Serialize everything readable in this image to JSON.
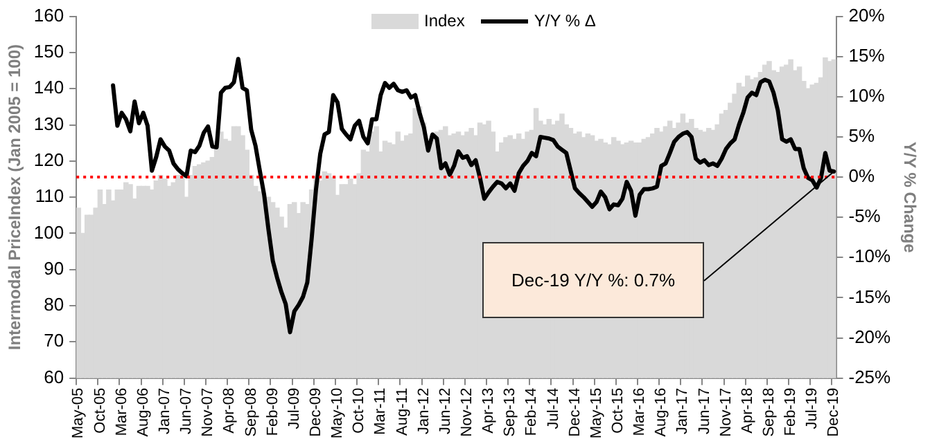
{
  "chart_data": {
    "type": "bar",
    "ylabel": "Intermodal PriceIndex (Jan 2005 = 100)",
    "y2label": "Y/Y % Change",
    "categories": [
      "May-05",
      null,
      null,
      null,
      null,
      "Oct-05",
      null,
      null,
      null,
      null,
      "Mar-06",
      null,
      null,
      null,
      null,
      "Aug-06",
      null,
      null,
      null,
      null,
      "Jan-07",
      null,
      null,
      null,
      null,
      "Jun-07",
      null,
      null,
      null,
      null,
      "Nov-07",
      null,
      null,
      null,
      null,
      "Apr-08",
      null,
      null,
      null,
      null,
      "Sep-08",
      null,
      null,
      null,
      null,
      "Feb-09",
      null,
      null,
      null,
      null,
      "Jul-09",
      null,
      null,
      null,
      null,
      "Dec-09",
      null,
      null,
      null,
      null,
      "May-10",
      null,
      null,
      null,
      null,
      "Oct-10",
      null,
      null,
      null,
      null,
      "Mar-11",
      null,
      null,
      null,
      null,
      "Aug-11",
      null,
      null,
      null,
      null,
      "Jan-12",
      null,
      null,
      null,
      null,
      "Jun-12",
      null,
      null,
      null,
      null,
      "Nov-12",
      null,
      null,
      null,
      null,
      "Apr-13",
      null,
      null,
      null,
      null,
      "Sep-13",
      null,
      null,
      null,
      null,
      "Feb-14",
      null,
      null,
      null,
      null,
      "Jul-14",
      null,
      null,
      null,
      null,
      "Dec-14",
      null,
      null,
      null,
      null,
      "May-15",
      null,
      null,
      null,
      null,
      "Oct-15",
      null,
      null,
      null,
      null,
      "Mar-16",
      null,
      null,
      null,
      null,
      "Aug-16",
      null,
      null,
      null,
      null,
      "Jan-17",
      null,
      null,
      null,
      null,
      "Jun-17",
      null,
      null,
      null,
      null,
      "Nov-17",
      null,
      null,
      null,
      null,
      "Apr-18",
      null,
      null,
      null,
      null,
      "Sep-18",
      null,
      null,
      null,
      null,
      "Feb-19",
      null,
      null,
      null,
      null,
      "Jul-19",
      null,
      null,
      null,
      null,
      "Dec-19"
    ],
    "series": [
      {
        "name": "Index",
        "type": "bar",
        "color": "#d9d9d9",
        "values": [
          107,
          100,
          105,
          105,
          107,
          112,
          108,
          112,
          109,
          112,
          112,
          114,
          113.5,
          109.5,
          113,
          113,
          113,
          112,
          114.5,
          116,
          115,
          113,
          114,
          116,
          115.5,
          110,
          116,
          118.5,
          119,
          119.5,
          120,
          121,
          125.5,
          128,
          126,
          125.5,
          129.5,
          129.5,
          127,
          123,
          116,
          113,
          111.5,
          109.5,
          110,
          108.5,
          107,
          104.5,
          101.5,
          108,
          108.5,
          105.5,
          108.5,
          108,
          112,
          115,
          114.5,
          117,
          116.5,
          115.5,
          110.5,
          113.5,
          113.5,
          115,
          113.5,
          116.5,
          123,
          122.5,
          128,
          129.5,
          122.5,
          125.5,
          125,
          124.5,
          128,
          125.5,
          127,
          127.5,
          134.5,
          135,
          130.5,
          125.5,
          127,
          128,
          128.5,
          129.5,
          127,
          127.5,
          128,
          127,
          128,
          129,
          127,
          130.5,
          130,
          131,
          128,
          122.5,
          125,
          126.5,
          127,
          126,
          127.5,
          126,
          128,
          128.5,
          134.5,
          131,
          130,
          131.5,
          130,
          131,
          133,
          130,
          129,
          127.5,
          128,
          126.5,
          127.5,
          127,
          125.5,
          126,
          125,
          124.5,
          126.5,
          125.5,
          124.5,
          125,
          125.5,
          125,
          125,
          126,
          126.5,
          127.5,
          129,
          128,
          129.5,
          131,
          129,
          130.5,
          133,
          130.5,
          131.5,
          129,
          128.5,
          128,
          129,
          128.5,
          130,
          133,
          134,
          136,
          138.5,
          141.5,
          140.5,
          143.5,
          142.5,
          143,
          144.5,
          146.5,
          147.5,
          145,
          144.5,
          146,
          146.5,
          148,
          145,
          146,
          142,
          140,
          141,
          141.5,
          143,
          148.5,
          147.5,
          148
        ]
      },
      {
        "name": "Y/Y % Δ",
        "type": "line",
        "axis": "y2",
        "color": "#000000",
        "values": [
          null,
          null,
          null,
          null,
          null,
          null,
          null,
          null,
          11.4,
          6.4,
          8.0,
          7.2,
          5.7,
          9.4,
          6.7,
          8.0,
          6.4,
          0.8,
          2.5,
          4.7,
          3.8,
          3.3,
          1.7,
          1.0,
          0.5,
          0.1,
          3.3,
          3.1,
          3.9,
          5.5,
          6.3,
          3.8,
          3.7,
          10.5,
          11.1,
          11.2,
          11.8,
          14.7,
          11.1,
          10.8,
          5.9,
          3.9,
          0.8,
          -2.2,
          -6.5,
          -10.4,
          -12.5,
          -14.3,
          -15.8,
          -19.3,
          -16.7,
          -15.9,
          -14.9,
          -13.1,
          -7.7,
          -1.6,
          2.9,
          5.3,
          5.6,
          10.2,
          9.3,
          6.0,
          5.3,
          4.7,
          6.4,
          7.0,
          5.0,
          4.2,
          7.2,
          7.2,
          10.2,
          11.7,
          11.1,
          11.6,
          10.8,
          10.6,
          10.8,
          9.9,
          10.2,
          8.0,
          6.2,
          3.3,
          5.3,
          4.8,
          1.1,
          1.7,
          0.3,
          1.4,
          3.2,
          2.4,
          2.6,
          1.5,
          2.1,
          -0.1,
          -2.7,
          -1.9,
          -1.2,
          -0.6,
          -0.8,
          -1.4,
          -0.8,
          -1.7,
          0.5,
          1.4,
          2.0,
          3.0,
          2.6,
          5.0,
          4.9,
          4.8,
          4.6,
          3.8,
          3.4,
          3.0,
          0.8,
          -1.4,
          -2.0,
          -2.5,
          -3.1,
          -3.7,
          -3.1,
          -1.8,
          -2.5,
          -4.0,
          -3.4,
          -3.5,
          -2.7,
          -0.6,
          -1.7,
          -4.8,
          -2.2,
          -1.5,
          -1.5,
          -1.4,
          -1.2,
          1.4,
          1.7,
          3.0,
          4.4,
          5.0,
          5.4,
          5.6,
          5.0,
          2.3,
          1.8,
          2.1,
          1.5,
          1.7,
          1.4,
          2.3,
          3.5,
          4.2,
          4.7,
          6.5,
          8.0,
          9.9,
          10.5,
          10.2,
          11.8,
          12.1,
          11.9,
          10.5,
          8.3,
          4.7,
          4.4,
          4.7,
          3.5,
          3.5,
          1.1,
          -0.1,
          -0.4,
          -1.3,
          -0.1,
          3.0,
          0.8,
          0.7
        ]
      }
    ],
    "ylim": [
      60,
      160
    ],
    "yticks": [
      60,
      70,
      80,
      90,
      100,
      110,
      120,
      130,
      140,
      150,
      160
    ],
    "y2lim": [
      -25,
      20
    ],
    "y2ticks": [
      {
        "value": -25,
        "label": "-25%"
      },
      {
        "value": -20,
        "label": "-20%"
      },
      {
        "value": -15,
        "label": "-15%"
      },
      {
        "value": -10,
        "label": "-10%"
      },
      {
        "value": -5,
        "label": "-5%"
      },
      {
        "value": 0,
        "label": "0%"
      },
      {
        "value": 5,
        "label": "5%"
      },
      {
        "value": 10,
        "label": "10%"
      },
      {
        "value": 15,
        "label": "15%"
      },
      {
        "value": 20,
        "label": "20%"
      }
    ],
    "ref_lines": [
      {
        "axis": "y2",
        "value": 0,
        "color": "#ff0000",
        "line_style": "dotted"
      }
    ],
    "annotations": [
      "Dec-19 Y/Y %: 0.7%"
    ],
    "legend": "top",
    "marker": "none",
    "line_style": "solid"
  }
}
